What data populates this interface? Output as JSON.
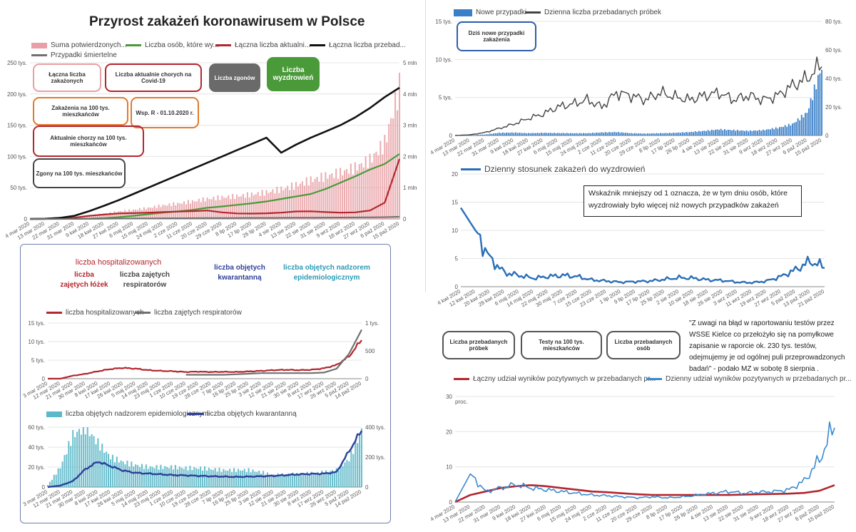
{
  "colors": {
    "pink": "#e8a0a4",
    "green": "#4a9a3a",
    "darkred": "#b3262d",
    "black": "#111111",
    "gray": "#707070",
    "blue": "#3a7fc8",
    "navy": "#2e3f9a",
    "cyan": "#5bb8c8",
    "teal": "#2a9ab5"
  },
  "main": {
    "title": "Przyrost zakażeń koronawirusem w Polsce",
    "legend": [
      "Suma potwierdzonych...",
      "Liczba osób, które wy...",
      "Łączna liczba aktualni...",
      "Łączna liczba przebad...",
      "Przypadki śmiertelne"
    ],
    "cards": [
      "Łączna liczba zakażonych",
      "Liczba aktualnie chorych na Covid-19",
      "Liczba zgonów",
      "Liczba wyzdrowień",
      "Zakażenia na 100 tys. mieszkańców",
      "Wsp. R - 01.10.2020 r.",
      "Aktualnie chorzy na 100 tys. mieszkańców",
      "Zgony na 100 tys. mieszkańców"
    ]
  },
  "hosp": {
    "headers": [
      "liczba  hospitalizowanych",
      "liczba zajętych łóżek",
      "liczba zajętych respiratorów",
      "liczba objętych kwarantanną",
      "liczba objętych nadzorem epidemiologicznym"
    ],
    "legend1": [
      "liczba hospitalizowanych",
      "liczba zajętych respiratorów"
    ],
    "legend2": [
      "liczba objętych nadzorem epidemiologicznym",
      "liczba objętych kwarantanną"
    ]
  },
  "daily": {
    "legend": [
      "Nowe przypadki",
      "Dzienna liczba przebadanych próbek"
    ],
    "card": "Dziś nowe przypadki zakażenia"
  },
  "ratio": {
    "legend": "Dzienny stosunek zakażeń do wyzdrowień",
    "note": "Wskaźnik mniejszy od 1 oznacza, że w tym dniu osób, które wyzdrowiały było więcej niż nowych przypadków zakażeń"
  },
  "tests": {
    "cards": [
      "Liczba przebadanych próbek",
      "Testy na 100 tys. mieszkańców",
      "Liczba przebadanych osób"
    ],
    "note": "\"Z uwagi na błąd w raportowaniu testów przez WSSE Kielce co przełożyło się na pomyłkowe zapisanie w raporcie ok. 230 tys. testów, odejmujemy je od ogólnej puli przeprowadzonych badań\" - podało MZ w sobotę 8 sierpnia .",
    "legend": [
      "Łączny udział wyników pozytywnych w przebadanych pr...",
      "Dzienny udział wyników pozytywnych w przebadanych pr..."
    ]
  },
  "chart_data": [
    {
      "id": "cumulative",
      "type": "bar+line",
      "title": "Przyrost zakażeń koronawirusem w Polsce",
      "x": [
        "4 mar 2020",
        "13 mar 2020",
        "22 mar 2020",
        "31 mar 2020",
        "9 kwi 2020",
        "18 kwi 2020",
        "27 kwi 2020",
        "6 maj 2020",
        "15 maj 2020",
        "24 maj 2020",
        "2 cze 2020",
        "11 cze 2020",
        "20 cze 2020",
        "29 cze 2020",
        "8 lip 2020",
        "17 lip 2020",
        "26 lip 2020",
        "4 sie 2020",
        "13 sie 2020",
        "22 sie 2020",
        "31 sie 2020",
        "9 wrz 2020",
        "18 wrz 2020",
        "27 wrz 2020",
        "6 paź 2020",
        "15 paź 2020"
      ],
      "yleft_ticks": [
        "0",
        "50 tys.",
        "100 tys.",
        "150 tys.",
        "200 tys.",
        "250 tys."
      ],
      "yright_ticks": [
        "0",
        "1 mln",
        "2 mln",
        "3 mln",
        "4 mln",
        "5 mln"
      ],
      "ylim_left": [
        0,
        250000
      ],
      "ylim_right": [
        0,
        5000000
      ],
      "series": [
        {
          "name": "Suma potwierdzonych...",
          "kind": "bar",
          "axis": "left",
          "values": [
            0,
            150,
            2000,
            2300,
            5500,
            8500,
            12000,
            14500,
            17600,
            21600,
            24500,
            28000,
            32000,
            34500,
            36200,
            39000,
            42500,
            47500,
            54000,
            62000,
            68000,
            74000,
            82000,
            94000,
            121000,
            210000
          ]
        },
        {
          "name": "Liczba osób, które wy...",
          "kind": "line",
          "axis": "left",
          "values": [
            0,
            0,
            10,
            200,
            400,
            1200,
            2800,
            5000,
            7500,
            10000,
            12000,
            14500,
            17800,
            20000,
            22500,
            25000,
            28000,
            32000,
            36000,
            40000,
            48000,
            58000,
            68000,
            79000,
            88000,
            104000
          ]
        },
        {
          "name": "Łączna liczba aktualni...",
          "kind": "line",
          "axis": "left",
          "values": [
            0,
            150,
            1900,
            2100,
            5000,
            7000,
            8800,
            9200,
            10000,
            11000,
            11800,
            12500,
            13500,
            10500,
            8800,
            8600,
            9000,
            10000,
            12000,
            12200,
            11000,
            10000,
            10500,
            13500,
            26000,
            96000
          ]
        },
        {
          "name": "Łączna liczba przebad...",
          "kind": "line",
          "axis": "right",
          "values": [
            0,
            5000,
            30000,
            100000,
            250000,
            420000,
            600000,
            800000,
            1000000,
            1200000,
            1400000,
            1600000,
            1800000,
            2000000,
            2200000,
            2400000,
            2600000,
            2120000,
            2380000,
            2600000,
            2800000,
            3000000,
            3250000,
            3550000,
            3900000,
            4200000
          ]
        },
        {
          "name": "Przypadki śmiertelne",
          "kind": "line",
          "axis": "left",
          "values": [
            0,
            0,
            5,
            30,
            150,
            350,
            600,
            800,
            950,
            1050,
            1150,
            1250,
            1400,
            1500,
            1650,
            1700,
            1750,
            1800,
            1900,
            2050,
            2150,
            2300,
            2450,
            2600,
            2900,
            3500
          ]
        }
      ]
    },
    {
      "id": "hospital",
      "type": "line",
      "x": [
        "3 mar 2020",
        "12 mar 2020",
        "21 mar 2020",
        "30 mar 2020",
        "8 kwi 2020",
        "17 kwi 2020",
        "26 kwi 2020",
        "5 maj 2020",
        "14 maj 2020",
        "23 maj 2020",
        "1 cze 2020",
        "10 cze 2020",
        "19 cze 2020",
        "28 cze 2020",
        "7 lip 2020",
        "16 lip 2020",
        "25 lip 2020",
        "3 sie 2020",
        "12 sie 2020",
        "21 sie 2020",
        "30 sie 2020",
        "8 wrz 2020",
        "17 wrz 2020",
        "26 wrz 2020",
        "5 paź 2020",
        "14 paź 2020"
      ],
      "yleft_ticks": [
        "0",
        "5 tys.",
        "10 tys.",
        "15 tys."
      ],
      "yright_ticks": [
        "0",
        "500",
        "1 tys."
      ],
      "ylim_left": [
        0,
        15000
      ],
      "ylim_right": [
        0,
        1000
      ],
      "series": [
        {
          "name": "liczba hospitalizowanych",
          "axis": "left",
          "values": [
            0,
            0,
            800,
            1300,
            2000,
            2600,
            2900,
            2700,
            2300,
            2100,
            2000,
            1800,
            1900,
            1800,
            1850,
            1800,
            1950,
            2100,
            2300,
            2400,
            2300,
            2400,
            2800,
            3700,
            6000,
            10500
          ]
        },
        {
          "name": "liczba zajętych respiratorów",
          "axis": "right",
          "values": [
            null,
            null,
            null,
            null,
            null,
            null,
            null,
            null,
            null,
            null,
            null,
            70,
            70,
            70,
            70,
            80,
            90,
            100,
            100,
            100,
            100,
            100,
            110,
            180,
            450,
            880
          ]
        }
      ]
    },
    {
      "id": "quarantine",
      "type": "bar+line",
      "x": [
        "3 mar 2020",
        "12 mar 2020",
        "21 mar 2020",
        "30 mar 2020",
        "8 kwi 2020",
        "17 kwi 2020",
        "26 kwi 2020",
        "5 maj 2020",
        "14 maj 2020",
        "23 maj 2020",
        "1 cze 2020",
        "10 cze 2020",
        "19 cze 2020",
        "28 cze 2020",
        "7 lip 2020",
        "16 lip 2020",
        "25 lip 2020",
        "3 sie 2020",
        "12 sie 2020",
        "21 sie 2020",
        "30 sie 2020",
        "8 wrz 2020",
        "17 wrz 2020",
        "26 wrz 2020",
        "5 paź 2020",
        "14 paź 2020"
      ],
      "yleft_ticks": [
        "0",
        "20 tys.",
        "40 tys.",
        "60 tys."
      ],
      "yright_ticks": [
        "0",
        "200 tys.",
        "400 tys."
      ],
      "ylim_left": [
        0,
        60000
      ],
      "ylim_right": [
        0,
        400000
      ],
      "series": [
        {
          "name": "liczba objętych nadzorem epidemiologicznym",
          "kind": "bar",
          "axis": "left",
          "values": [
            2000,
            20000,
            52000,
            60000,
            44000,
            30000,
            25000,
            22000,
            20000,
            20000,
            20000,
            19000,
            19000,
            18000,
            17000,
            17000,
            17000,
            15000,
            12000,
            13000,
            13000,
            14000,
            15000,
            17000,
            28000,
            57000
          ]
        },
        {
          "name": "liczba objętych kwarantanną",
          "kind": "line",
          "axis": "right",
          "values": [
            0,
            10000,
            40000,
            120000,
            170000,
            140000,
            110000,
            95000,
            90000,
            85000,
            80000,
            78000,
            75000,
            72000,
            70000,
            68000,
            70000,
            72000,
            75000,
            80000,
            85000,
            88000,
            90000,
            100000,
            240000,
            380000
          ]
        }
      ]
    },
    {
      "id": "daily",
      "type": "bar+line",
      "x": [
        "4 mar 2020",
        "13 mar 2020",
        "22 mar 2020",
        "31 mar 2020",
        "9 kwi 2020",
        "18 kwi 2020",
        "27 kwi 2020",
        "6 maj 2020",
        "15 maj 2020",
        "24 maj 2020",
        "2 cze 2020",
        "11 cze 2020",
        "20 cze 2020",
        "29 cze 2020",
        "8 lip 2020",
        "17 lip 2020",
        "26 lip 2020",
        "4 sie 2020",
        "13 sie 2020",
        "22 sie 2020",
        "31 sie 2020",
        "9 wrz 2020",
        "18 wrz 2020",
        "27 wrz 2020",
        "6 paź 2020",
        "15 paź 2020"
      ],
      "yleft_ticks": [
        "0",
        "5 tys.",
        "10 tys.",
        "15 tys."
      ],
      "yright_ticks": [
        "0",
        "20 tys.",
        "40 tys.",
        "60 tys.",
        "80 tys."
      ],
      "ylim_left": [
        0,
        15000
      ],
      "ylim_right": [
        0,
        80000
      ],
      "series": [
        {
          "name": "Nowe przypadki",
          "kind": "bar",
          "axis": "left",
          "values": [
            1,
            50,
            120,
            350,
            380,
            300,
            350,
            320,
            300,
            300,
            400,
            450,
            300,
            250,
            300,
            350,
            450,
            600,
            800,
            700,
            600,
            700,
            1000,
            1500,
            3000,
            9000
          ]
        },
        {
          "name": "Dzienna liczba przebadanych próbek",
          "kind": "line",
          "axis": "right",
          "values": [
            0,
            500,
            2000,
            5000,
            8000,
            12000,
            15000,
            20000,
            22000,
            25000,
            20000,
            30000,
            28000,
            25000,
            30000,
            27000,
            25000,
            28000,
            30000,
            25000,
            28000,
            25000,
            28000,
            35000,
            40000,
            50000
          ]
        }
      ]
    },
    {
      "id": "ratio",
      "type": "line",
      "x": [
        "4 kwi 2020",
        "12 kwi 2020",
        "20 kwi 2020",
        "28 kwi 2020",
        "6 maj 2020",
        "14 maj 2020",
        "22 maj 2020",
        "30 maj 2020",
        "7 cze 2020",
        "15 cze 2020",
        "23 cze 2020",
        "1 lip 2020",
        "9 lip 2020",
        "17 lip 2020",
        "25 lip 2020",
        "2 sie 2020",
        "10 sie 2020",
        "18 sie 2020",
        "26 sie 2020",
        "3 wrz 2020",
        "11 wrz 2020",
        "19 wrz 2020",
        "27 wrz 2020",
        "5 paź 2020",
        "13 paź 2020",
        "21 paź 2020"
      ],
      "yticks": [
        "0",
        "5",
        "10",
        "15",
        "20"
      ],
      "ylim": [
        0,
        20
      ],
      "series": [
        {
          "name": "Dzienny stosunek zakażeń do wyzdrowień",
          "values": [
            14,
            10,
            5,
            2.5,
            2,
            1.5,
            1.8,
            2,
            1.8,
            1.2,
            1,
            0.8,
            0.9,
            1,
            1.3,
            1.6,
            1.5,
            1.2,
            1.1,
            0.8,
            0.7,
            1,
            1.8,
            3,
            4.5,
            3.5
          ]
        }
      ]
    },
    {
      "id": "positive",
      "type": "line",
      "x": [
        "4 mar 2020",
        "13 mar 2020",
        "22 mar 2020",
        "31 mar 2020",
        "9 kwi 2020",
        "18 kwi 2020",
        "27 kwi 2020",
        "6 maj 2020",
        "15 maj 2020",
        "24 maj 2020",
        "2 cze 2020",
        "11 cze 2020",
        "20 cze 2020",
        "29 cze 2020",
        "8 lip 2020",
        "17 lip 2020",
        "26 lip 2020",
        "4 sie 2020",
        "13 sie 2020",
        "22 sie 2020",
        "31 sie 2020",
        "9 wrz 2020",
        "18 wrz 2020",
        "27 wrz 2020",
        "6 paź 2020",
        "15 paź 2020"
      ],
      "yticks": [
        "0",
        "10",
        "20",
        "30"
      ],
      "ylim": [
        0,
        30
      ],
      "ylabel": "proc.",
      "series": [
        {
          "name": "Łączny udział wyników pozytywnych w przebadanych pr...",
          "values": [
            0,
            2,
            3,
            4,
            4.5,
            4.8,
            4.5,
            4,
            3.5,
            3,
            2.8,
            2.5,
            2.2,
            2,
            2,
            2,
            2,
            2,
            2,
            2.1,
            2.2,
            2.3,
            2.4,
            2.6,
            3.2,
            4.8
          ]
        },
        {
          "name": "Dzienny udział wyników pozytywnych w przebadanych pr...",
          "values": [
            0,
            8,
            3,
            4,
            5,
            4,
            3.5,
            3,
            2.5,
            2,
            1.8,
            1.5,
            1.2,
            1.5,
            1.2,
            1.5,
            2,
            2.5,
            3,
            2.5,
            2.8,
            3,
            3.5,
            6,
            12,
            22
          ]
        }
      ]
    }
  ]
}
